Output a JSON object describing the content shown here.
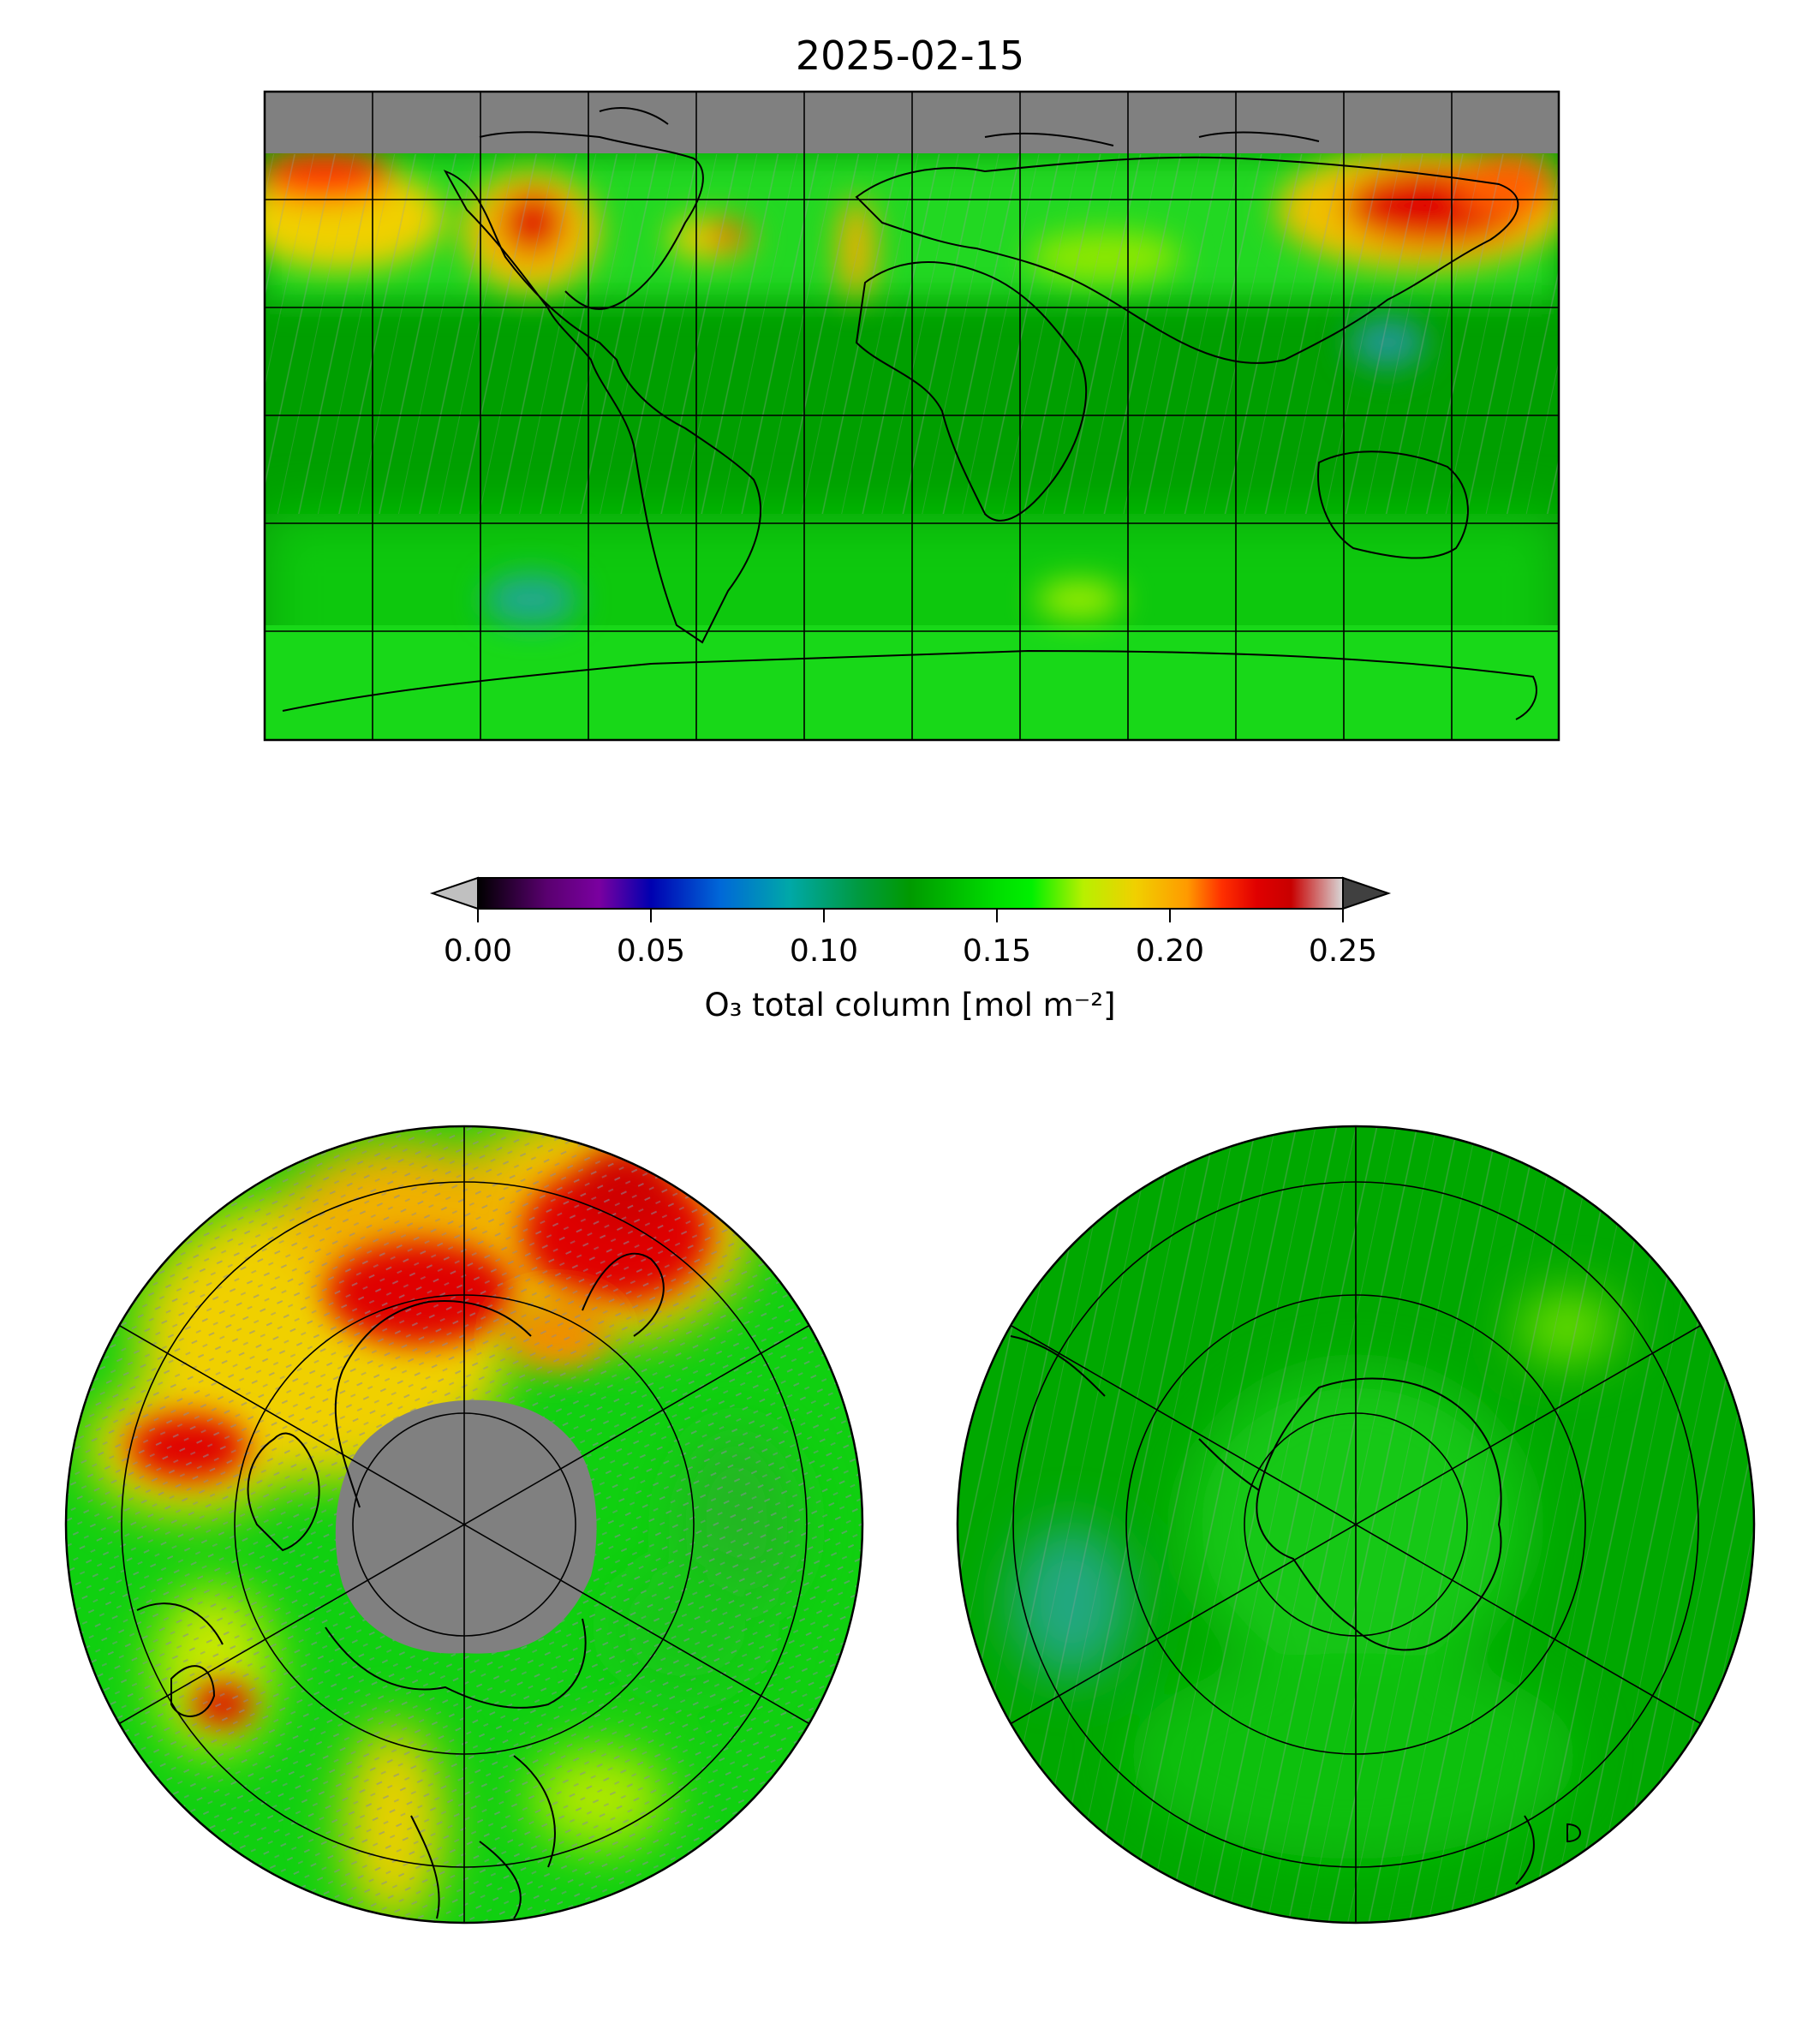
{
  "title": "2025-02-15",
  "colorbar": {
    "label": "O₃ total column [mol m⁻²]",
    "min": 0.0,
    "max": 0.25,
    "ticks": [
      "0.00",
      "0.05",
      "0.10",
      "0.15",
      "0.20",
      "0.25"
    ],
    "extend": "both",
    "under_color": "#c0c0c0",
    "over_color": "#404040",
    "colormap": [
      [
        0.0,
        "#000000"
      ],
      [
        0.08,
        "#5a0070"
      ],
      [
        0.14,
        "#7a00a0"
      ],
      [
        0.2,
        "#0000b0"
      ],
      [
        0.28,
        "#0068d8"
      ],
      [
        0.36,
        "#00a8a8"
      ],
      [
        0.44,
        "#009a40"
      ],
      [
        0.5,
        "#009a00"
      ],
      [
        0.6,
        "#00de00"
      ],
      [
        0.64,
        "#00f000"
      ],
      [
        0.7,
        "#b8f000"
      ],
      [
        0.76,
        "#f0d000"
      ],
      [
        0.82,
        "#ff9a00"
      ],
      [
        0.86,
        "#ff3000"
      ],
      [
        0.9,
        "#e00000"
      ],
      [
        0.94,
        "#c80000"
      ],
      [
        1.0,
        "#d8d8d8"
      ]
    ]
  },
  "maps": [
    {
      "name": "global-plate-carree",
      "projection": "PlateCarree",
      "gridlines": true,
      "missing_color": "#808080"
    },
    {
      "name": "north-polar-stereo",
      "projection": "NorthPolarStereo",
      "gridlines": true,
      "missing_color": "#808080"
    },
    {
      "name": "south-polar-stereo",
      "projection": "SouthPolarStereo",
      "gridlines": true,
      "missing_color": "#808080"
    }
  ],
  "colors": {
    "high_ozone": "#e00000",
    "mid_high": "#f0d000",
    "typical": "#00de00",
    "low": "#009a00",
    "no_data": "#808080"
  }
}
